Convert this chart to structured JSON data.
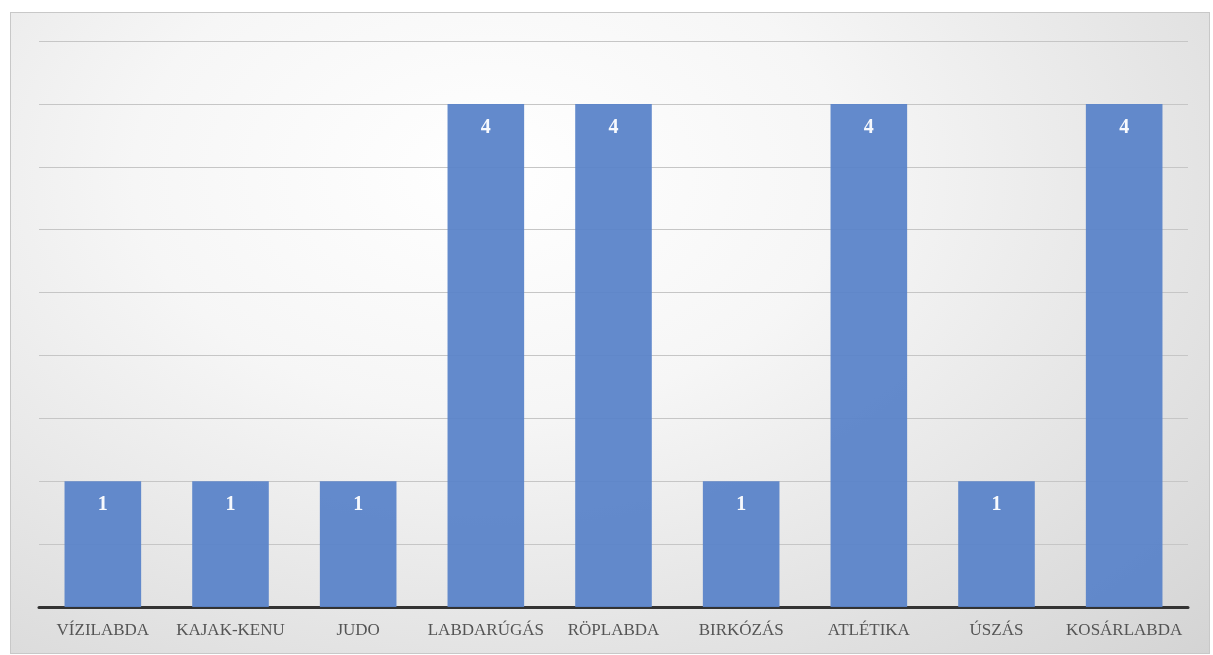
{
  "chart_data": {
    "type": "bar",
    "categories": [
      "VÍZILABDA",
      "KAJAK-KENU",
      "JUDO",
      "LABDARÚGÁS",
      "RÖPLABDA",
      "BIRKÓZÁS",
      "ATLÉTIKA",
      "ÚSZÁS",
      "KOSÁRLABDA"
    ],
    "values": [
      1,
      1,
      1,
      4,
      4,
      1,
      4,
      1,
      4
    ],
    "color": "#5b84c9",
    "ylim": [
      0,
      4.5
    ],
    "yticks": [
      {
        "value": 0,
        "label": null
      },
      {
        "value": 0.5,
        "label": null
      },
      {
        "value": 1,
        "label": null
      },
      {
        "value": 1.5,
        "label": null
      },
      {
        "value": 2,
        "label": null
      },
      {
        "value": 2.5,
        "label": null
      },
      {
        "value": 3,
        "label": null
      },
      {
        "value": 3.5,
        "label": null
      },
      {
        "value": 4,
        "label": null
      },
      {
        "value": 4.5,
        "label": null
      }
    ],
    "grid": "y",
    "data_labels": true,
    "tick_labels": "x"
  }
}
